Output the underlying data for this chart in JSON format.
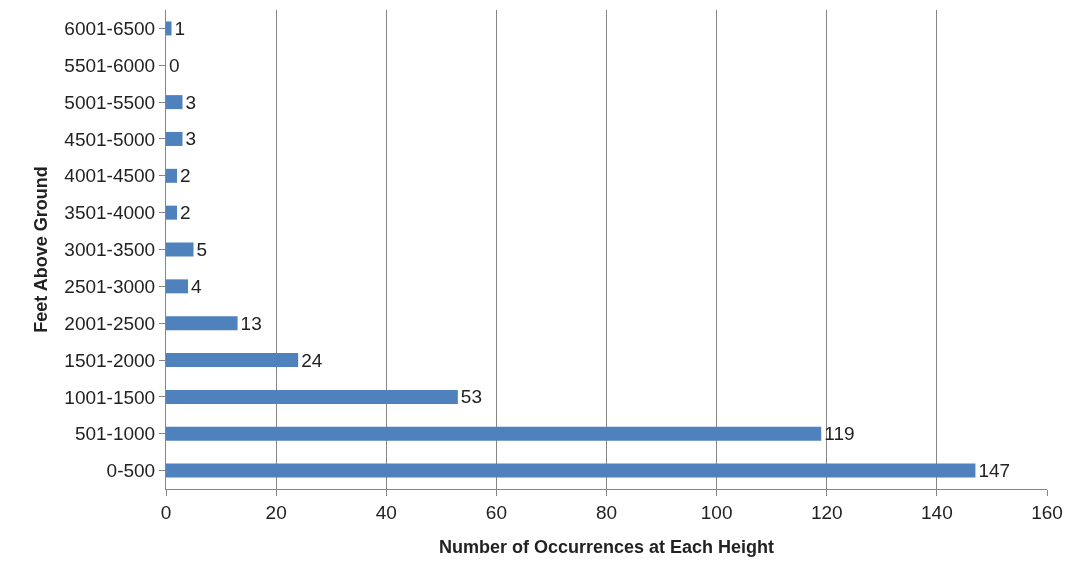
{
  "chart_data": {
    "type": "bar",
    "orientation": "horizontal",
    "xlabel": "Number of Occurrences at Each Height",
    "ylabel": "Feet Above Ground",
    "categories": [
      "6001-6500",
      "5501-6000",
      "5001-5500",
      "4501-5000",
      "4001-4500",
      "3501-4000",
      "3001-3500",
      "2501-3000",
      "2001-2500",
      "1501-2000",
      "1001-1500",
      "501-1000",
      "0-500"
    ],
    "values": [
      1,
      0,
      3,
      3,
      2,
      2,
      5,
      4,
      13,
      24,
      53,
      119,
      147
    ],
    "color": "#4f81bd",
    "xlim": [
      0,
      160
    ],
    "xticks": [
      0,
      20,
      40,
      60,
      80,
      100,
      120,
      140,
      160
    ],
    "grid": "x",
    "data_labels": true
  }
}
